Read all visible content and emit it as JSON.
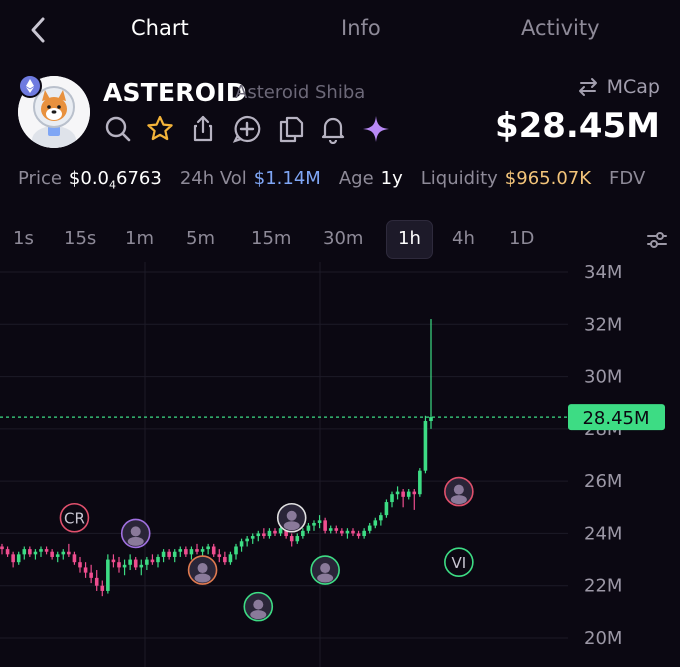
{
  "nav": {
    "tabs": [
      {
        "label": "Chart",
        "active": true
      },
      {
        "label": "Info",
        "active": false
      },
      {
        "label": "Activity",
        "active": false
      }
    ]
  },
  "token": {
    "symbol": "ASTEROID",
    "name": "Asteroid Shiba",
    "chain_icon": "ethereum-icon",
    "action_icons": [
      "search-icon",
      "star-icon",
      "share-icon",
      "add-icon",
      "copy-icon",
      "bell-icon",
      "sparkle-icon"
    ]
  },
  "mcap": {
    "toggle_label": "MCap",
    "value": "$28.45M"
  },
  "stats": {
    "price_label": "Price",
    "price_value": "$0.0",
    "price_zeros": "4",
    "price_digits": "6763",
    "vol_label": "24h Vol",
    "vol_value": "$1.14M",
    "age_label": "Age",
    "age_value": "1y",
    "liq_label": "Liquidity",
    "liq_value": "$965.07K",
    "fdv_label": "FDV"
  },
  "intervals": {
    "items": [
      "1s",
      "15s",
      "1m",
      "5m",
      "15m",
      "30m",
      "1h",
      "4h",
      "1D"
    ],
    "selected": "1h"
  },
  "colors": {
    "up": "#3ddc84",
    "down": "#ee4d8f",
    "price_line": "#3ddc84",
    "price_tag_bg": "#3ddc84",
    "accent_star": "#f4b43a",
    "accent_sparkle": "#b889f5"
  },
  "chart_data": {
    "type": "candlestick",
    "ylim": [
      20,
      34
    ],
    "y_ticks": [
      20,
      22,
      24,
      26,
      28,
      30,
      32,
      34
    ],
    "y_tick_labels": [
      "20M",
      "22M",
      "24M",
      "26M",
      "28M",
      "30M",
      "32M",
      "34M"
    ],
    "current_value": 28.45,
    "current_label": "28.45M",
    "candles": [
      [
        23.5,
        23.6,
        23.2,
        23.4
      ],
      [
        23.4,
        23.5,
        23.1,
        23.2
      ],
      [
        23.2,
        23.3,
        22.7,
        22.9
      ],
      [
        22.9,
        23.3,
        22.8,
        23.2
      ],
      [
        23.2,
        23.5,
        23.0,
        23.4
      ],
      [
        23.4,
        23.5,
        23.1,
        23.2
      ],
      [
        23.2,
        23.4,
        23.0,
        23.3
      ],
      [
        23.3,
        23.5,
        23.1,
        23.4
      ],
      [
        23.4,
        23.5,
        23.2,
        23.3
      ],
      [
        23.3,
        23.4,
        23.0,
        23.1
      ],
      [
        23.1,
        23.3,
        22.9,
        23.2
      ],
      [
        23.2,
        23.4,
        23.0,
        23.3
      ],
      [
        23.3,
        23.6,
        23.1,
        23.2
      ],
      [
        23.2,
        23.3,
        22.8,
        22.9
      ],
      [
        22.9,
        23.1,
        22.5,
        22.7
      ],
      [
        22.7,
        22.9,
        22.3,
        22.5
      ],
      [
        22.5,
        22.8,
        22.1,
        22.3
      ],
      [
        22.3,
        22.6,
        21.8,
        22.0
      ],
      [
        22.0,
        22.2,
        21.6,
        21.8
      ],
      [
        21.8,
        23.2,
        21.7,
        23.0
      ],
      [
        23.0,
        23.2,
        22.7,
        22.9
      ],
      [
        22.9,
        23.1,
        22.5,
        22.7
      ],
      [
        22.7,
        23.0,
        22.4,
        22.8
      ],
      [
        22.8,
        23.2,
        22.6,
        23.0
      ],
      [
        23.0,
        23.1,
        22.6,
        22.7
      ],
      [
        22.7,
        23.0,
        22.4,
        22.8
      ],
      [
        22.8,
        23.1,
        22.6,
        23.0
      ],
      [
        23.0,
        23.2,
        22.8,
        22.9
      ],
      [
        22.9,
        23.2,
        22.7,
        23.1
      ],
      [
        23.1,
        23.4,
        22.9,
        23.3
      ],
      [
        23.3,
        23.4,
        23.0,
        23.1
      ],
      [
        23.1,
        23.4,
        22.9,
        23.3
      ],
      [
        23.3,
        23.5,
        23.1,
        23.4
      ],
      [
        23.4,
        23.5,
        23.1,
        23.2
      ],
      [
        23.2,
        23.5,
        23.0,
        23.4
      ],
      [
        23.4,
        23.6,
        23.2,
        23.3
      ],
      [
        23.3,
        23.5,
        23.1,
        23.4
      ],
      [
        23.4,
        23.6,
        23.2,
        23.5
      ],
      [
        23.5,
        23.6,
        23.1,
        23.2
      ],
      [
        23.2,
        23.4,
        22.9,
        23.1
      ],
      [
        23.1,
        23.3,
        22.8,
        22.9
      ],
      [
        22.9,
        23.3,
        22.8,
        23.2
      ],
      [
        23.2,
        23.6,
        23.0,
        23.5
      ],
      [
        23.5,
        23.8,
        23.3,
        23.7
      ],
      [
        23.7,
        23.9,
        23.5,
        23.8
      ],
      [
        23.8,
        24.0,
        23.6,
        23.9
      ],
      [
        23.9,
        24.1,
        23.7,
        24.0
      ],
      [
        24.0,
        24.2,
        23.8,
        23.9
      ],
      [
        23.9,
        24.2,
        23.8,
        24.1
      ],
      [
        24.1,
        24.2,
        23.9,
        24.0
      ],
      [
        24.0,
        24.3,
        23.9,
        24.2
      ],
      [
        24.2,
        24.3,
        23.8,
        23.9
      ],
      [
        23.9,
        24.0,
        23.5,
        23.7
      ],
      [
        23.7,
        24.0,
        23.6,
        23.9
      ],
      [
        23.9,
        24.2,
        23.8,
        24.1
      ],
      [
        24.1,
        24.4,
        24.0,
        24.3
      ],
      [
        24.3,
        24.5,
        24.1,
        24.4
      ],
      [
        24.4,
        24.7,
        24.2,
        24.5
      ],
      [
        24.5,
        24.6,
        24.0,
        24.1
      ],
      [
        24.1,
        24.3,
        24.0,
        24.2
      ],
      [
        24.2,
        24.3,
        24.0,
        24.1
      ],
      [
        24.1,
        24.2,
        23.9,
        24.0
      ],
      [
        24.0,
        24.2,
        23.8,
        24.1
      ],
      [
        24.1,
        24.2,
        23.9,
        24.0
      ],
      [
        24.0,
        24.1,
        23.8,
        23.9
      ],
      [
        23.9,
        24.2,
        23.8,
        24.1
      ],
      [
        24.1,
        24.4,
        24.0,
        24.3
      ],
      [
        24.3,
        24.6,
        24.2,
        24.5
      ],
      [
        24.5,
        24.8,
        24.3,
        24.7
      ],
      [
        24.7,
        25.3,
        24.6,
        25.2
      ],
      [
        25.2,
        25.6,
        25.0,
        25.5
      ],
      [
        25.5,
        25.8,
        25.3,
        25.6
      ],
      [
        25.6,
        25.7,
        25.0,
        25.4
      ],
      [
        25.4,
        25.7,
        25.3,
        25.6
      ],
      [
        25.6,
        25.7,
        24.9,
        25.5
      ],
      [
        25.5,
        26.5,
        25.4,
        26.4
      ],
      [
        26.4,
        28.5,
        26.3,
        28.3
      ],
      [
        28.3,
        32.2,
        28.0,
        28.45
      ]
    ],
    "markers": [
      {
        "label": "CR",
        "candle": 13,
        "value": 24.6,
        "kind": "text",
        "color": "#e0506c"
      },
      {
        "label": "",
        "candle": 24,
        "value": 24.0,
        "kind": "avatar",
        "color": "#a070e0"
      },
      {
        "label": "",
        "candle": 36,
        "value": 22.6,
        "kind": "avatar",
        "color": "#e07a50"
      },
      {
        "label": "",
        "candle": 46,
        "value": 21.2,
        "kind": "avatar",
        "color": "#3ddc84"
      },
      {
        "label": "",
        "candle": 52,
        "value": 24.6,
        "kind": "avatar",
        "color": "#e0e0e0"
      },
      {
        "label": "",
        "candle": 58,
        "value": 22.6,
        "kind": "avatar",
        "color": "#3ddc84"
      },
      {
        "label": "",
        "candle": 82,
        "value": 25.6,
        "kind": "avatar",
        "color": "#e0506c"
      },
      {
        "label": "VI",
        "candle": 82,
        "value": 22.9,
        "kind": "text",
        "color": "#3ddc84"
      }
    ]
  }
}
